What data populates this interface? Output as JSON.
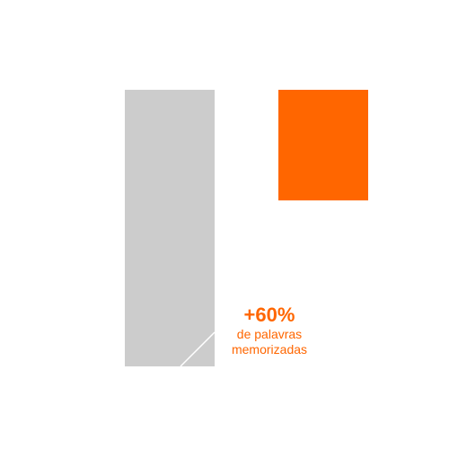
{
  "chart_data": {
    "type": "bar",
    "categories": [
      "",
      ""
    ],
    "series": [
      {
        "name": "",
        "values": [
          100,
          40
        ],
        "base": [
          0,
          60
        ],
        "colors": [
          "#cccccc",
          "#ff6600"
        ]
      }
    ],
    "ylim": [
      0,
      100
    ],
    "grid": false,
    "legend": "none",
    "annotation": {
      "value": "+60%",
      "line1": "de palavras",
      "line2": "memorizadas",
      "color": "#ff6600"
    },
    "accent_color": "#ff6600",
    "baseline_color": "#cccccc"
  }
}
